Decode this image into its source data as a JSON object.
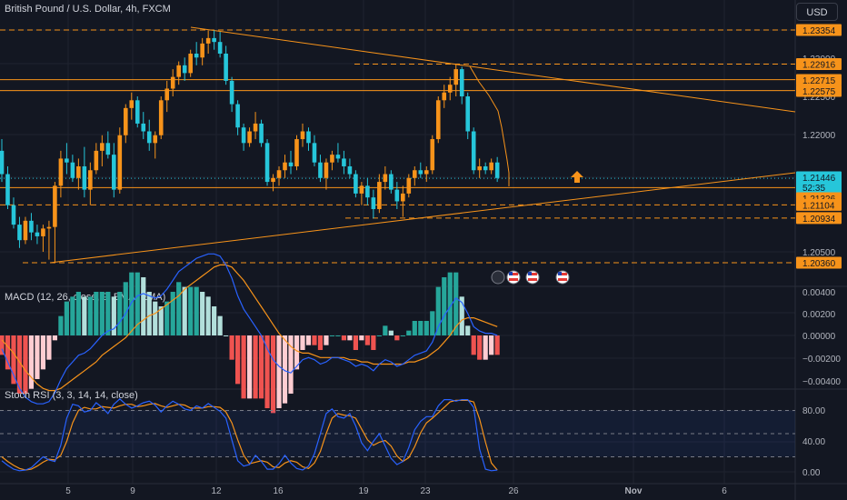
{
  "header": {
    "title": "British Pound / U.S. Dollar, 4h, FXCM",
    "currency_button": "USD"
  },
  "colors": {
    "bg": "#131722",
    "grid": "#1f2330",
    "up": "#f7931a",
    "down": "#26c6da",
    "level": "#f7931a",
    "macd_line": "#2962ff",
    "signal_line": "#f7931a",
    "hist_pos_strong": "#26a69a",
    "hist_pos_weak": "#b2dfdb",
    "hist_neg_strong": "#ef5350",
    "hist_neg_weak": "#ffcdd2",
    "stoch_k": "#2962ff",
    "stoch_d": "#f7931a",
    "axis_text": "#b2b5be"
  },
  "chart_data": [
    {
      "type": "candlestick",
      "title": "British Pound / U.S. Dollar, 4h, FXCM",
      "ylim": [
        1.201,
        1.236
      ],
      "y_ticks": [
        "1.20500",
        "1.22000",
        "1.22500",
        "1.23000"
      ],
      "x_ticks": [
        "5",
        "9",
        "12",
        "16",
        "19",
        "23",
        "26",
        "Nov",
        "6"
      ],
      "price_labels": [
        {
          "value": "1.23354",
          "style": "dashed"
        },
        {
          "value": "1.22916",
          "style": "dashed"
        },
        {
          "value": "1.22715",
          "style": "solid"
        },
        {
          "value": "1.22575",
          "style": "solid"
        },
        {
          "value": "1.21446",
          "style": "current"
        },
        {
          "value": "52:35",
          "style": "timer"
        },
        {
          "value": "1.21326",
          "style": "solid"
        },
        {
          "value": "1.21104",
          "style": "dashed"
        },
        {
          "value": "1.20934",
          "style": "dashed"
        },
        {
          "value": "1.20360",
          "style": "dashed"
        }
      ],
      "candles": [
        [
          1.218,
          1.2195,
          1.214,
          1.215
        ],
        [
          1.215,
          1.216,
          1.2105,
          1.211
        ],
        [
          1.211,
          1.212,
          1.208,
          1.2085
        ],
        [
          1.2085,
          1.2095,
          1.2055,
          1.2065
        ],
        [
          1.2065,
          1.2095,
          1.206,
          1.209
        ],
        [
          1.209,
          1.21,
          1.2065,
          1.2075
        ],
        [
          1.2075,
          1.2085,
          1.206,
          1.207
        ],
        [
          1.207,
          1.2085,
          1.205,
          1.208
        ],
        [
          1.208,
          1.209,
          1.204,
          1.2082
        ],
        [
          1.2082,
          1.214,
          1.2036,
          1.2135
        ],
        [
          1.2135,
          1.218,
          1.212,
          1.217
        ],
        [
          1.217,
          1.219,
          1.215,
          1.2165
        ],
        [
          1.2165,
          1.2175,
          1.214,
          1.2145
        ],
        [
          1.2145,
          1.217,
          1.213,
          1.216
        ],
        [
          1.216,
          1.2185,
          1.212,
          1.213
        ],
        [
          1.213,
          1.2165,
          1.211,
          1.2155
        ],
        [
          1.2155,
          1.219,
          1.215,
          1.218
        ],
        [
          1.218,
          1.22,
          1.216,
          1.219
        ],
        [
          1.219,
          1.2205,
          1.217,
          1.2175
        ],
        [
          1.2175,
          1.219,
          1.212,
          1.213
        ],
        [
          1.213,
          1.221,
          1.2125,
          1.22
        ],
        [
          1.22,
          1.224,
          1.219,
          1.2235
        ],
        [
          1.2235,
          1.2255,
          1.222,
          1.2245
        ],
        [
          1.2245,
          1.225,
          1.221,
          1.2215
        ],
        [
          1.2215,
          1.223,
          1.2195,
          1.2205
        ],
        [
          1.2205,
          1.222,
          1.218,
          1.219
        ],
        [
          1.219,
          1.2205,
          1.217,
          1.22
        ],
        [
          1.22,
          1.225,
          1.2195,
          1.2245
        ],
        [
          1.2245,
          1.227,
          1.223,
          1.226
        ],
        [
          1.226,
          1.2285,
          1.225,
          1.2275
        ],
        [
          1.2275,
          1.2295,
          1.2265,
          1.229
        ],
        [
          1.229,
          1.23,
          1.227,
          1.228
        ],
        [
          1.228,
          1.231,
          1.2275,
          1.2305
        ],
        [
          1.2305,
          1.232,
          1.229,
          1.23
        ],
        [
          1.23,
          1.2325,
          1.229,
          1.2318
        ],
        [
          1.2318,
          1.2335,
          1.2305,
          1.2325
        ],
        [
          1.2325,
          1.2335,
          1.231,
          1.232
        ],
        [
          1.232,
          1.2333,
          1.23,
          1.2305
        ],
        [
          1.2305,
          1.2315,
          1.2265,
          1.227
        ],
        [
          1.227,
          1.2275,
          1.223,
          1.224
        ],
        [
          1.224,
          1.2245,
          1.22,
          1.221
        ],
        [
          1.221,
          1.2215,
          1.218,
          1.219
        ],
        [
          1.219,
          1.221,
          1.2185,
          1.2205
        ],
        [
          1.2205,
          1.223,
          1.2195,
          1.2215
        ],
        [
          1.2215,
          1.222,
          1.2185,
          1.219
        ],
        [
          1.219,
          1.2195,
          1.2135,
          1.214
        ],
        [
          1.214,
          1.215,
          1.2128,
          1.2145
        ],
        [
          1.2145,
          1.216,
          1.2135,
          1.2155
        ],
        [
          1.2155,
          1.2175,
          1.2145,
          1.2165
        ],
        [
          1.2165,
          1.218,
          1.215,
          1.216
        ],
        [
          1.216,
          1.22,
          1.2155,
          1.2195
        ],
        [
          1.2195,
          1.2215,
          1.2185,
          1.2205
        ],
        [
          1.2205,
          1.221,
          1.218,
          1.219
        ],
        [
          1.219,
          1.22,
          1.216,
          1.2165
        ],
        [
          1.2165,
          1.2175,
          1.214,
          1.2145
        ],
        [
          1.2145,
          1.217,
          1.213,
          1.2165
        ],
        [
          1.2165,
          1.218,
          1.2155,
          1.2175
        ],
        [
          1.2175,
          1.219,
          1.2165,
          1.217
        ],
        [
          1.217,
          1.218,
          1.215,
          1.216
        ],
        [
          1.216,
          1.217,
          1.2145,
          1.215
        ],
        [
          1.215,
          1.2155,
          1.212,
          1.2125
        ],
        [
          1.2125,
          1.214,
          1.211,
          1.2135
        ],
        [
          1.2135,
          1.2145,
          1.211,
          1.212
        ],
        [
          1.212,
          1.213,
          1.2093,
          1.2105
        ],
        [
          1.2105,
          1.215,
          1.21,
          1.214
        ],
        [
          1.214,
          1.216,
          1.213,
          1.215
        ],
        [
          1.215,
          1.2155,
          1.2125,
          1.213
        ],
        [
          1.213,
          1.214,
          1.2105,
          1.2115
        ],
        [
          1.2115,
          1.2135,
          1.2095,
          1.2125
        ],
        [
          1.2125,
          1.215,
          1.212,
          1.2145
        ],
        [
          1.2145,
          1.216,
          1.2135,
          1.2155
        ],
        [
          1.2155,
          1.2165,
          1.2145,
          1.215
        ],
        [
          1.215,
          1.216,
          1.214,
          1.2155
        ],
        [
          1.2155,
          1.22,
          1.215,
          1.2195
        ],
        [
          1.2195,
          1.225,
          1.219,
          1.2245
        ],
        [
          1.2245,
          1.2265,
          1.2235,
          1.2255
        ],
        [
          1.2255,
          1.2275,
          1.2245,
          1.2265
        ],
        [
          1.2265,
          1.2292,
          1.225,
          1.2285
        ],
        [
          1.2285,
          1.2288,
          1.224,
          1.225
        ],
        [
          1.225,
          1.2255,
          1.2195,
          1.2205
        ],
        [
          1.2205,
          1.221,
          1.215,
          1.2155
        ],
        [
          1.2155,
          1.217,
          1.2145,
          1.216
        ],
        [
          1.216,
          1.2165,
          1.215,
          1.2155
        ],
        [
          1.2155,
          1.217,
          1.215,
          1.2165
        ],
        [
          1.2165,
          1.2172,
          1.214,
          1.2145
        ]
      ]
    },
    {
      "type": "line",
      "title": "MACD (12, 26, close, 9, EMA, EMA)",
      "ylim": [
        -0.0045,
        0.0045
      ],
      "y_ticks": [
        "0.00400",
        "0.00200",
        "0.00000",
        "−0.00200",
        "−0.00400"
      ],
      "series": [
        {
          "values": [
            -0.0006,
            -0.0012,
            -0.0018,
            -0.0024,
            -0.0028,
            -0.003,
            -0.0031,
            -0.0031,
            -0.003,
            -0.0026,
            -0.002,
            -0.0015,
            -0.0012,
            -0.0009,
            -0.0008,
            -0.0006,
            -0.0003,
            0.0,
            0.0002,
            0.0003,
            0.0006,
            0.001,
            0.0015,
            0.0018,
            0.0019,
            0.0018,
            0.0017,
            0.0018,
            0.0021,
            0.0025,
            0.0029,
            0.0031,
            0.0033,
            0.0035,
            0.0036,
            0.0037,
            0.0037,
            0.0036,
            0.0032,
            0.0026,
            0.0018,
            0.0012,
            0.0008,
            0.0004,
            0.0,
            -0.0006,
            -0.0011,
            -0.0014,
            -0.0016,
            -0.0017,
            -0.0014,
            -0.0011,
            -0.001,
            -0.0011,
            -0.0013,
            -0.0012,
            -0.001,
            -0.001,
            -0.0011,
            -0.0012,
            -0.0014,
            -0.0013,
            -0.0014,
            -0.0016,
            -0.0013,
            -0.0011,
            -0.0012,
            -0.0014,
            -0.0013,
            -0.0011,
            -0.0009,
            -0.0008,
            -0.0007,
            -0.0003,
            0.0004,
            0.0009,
            0.0013,
            0.0017,
            0.0015,
            0.001,
            0.0004,
            0.0002,
            0.0001,
            0.0001,
            0.0
          ]
        },
        {
          "values": [
            -0.0002,
            -0.0005,
            -0.0008,
            -0.0012,
            -0.0016,
            -0.0019,
            -0.0022,
            -0.0024,
            -0.0025,
            -0.0025,
            -0.0024,
            -0.0022,
            -0.002,
            -0.0018,
            -0.0016,
            -0.0014,
            -0.0012,
            -0.0009,
            -0.0007,
            -0.0005,
            -0.0003,
            -0.0001,
            0.0002,
            0.0005,
            0.0007,
            0.0009,
            0.001,
            0.0012,
            0.0014,
            0.0016,
            0.0018,
            0.0021,
            0.0023,
            0.0025,
            0.0027,
            0.0029,
            0.0031,
            0.0032,
            0.0032,
            0.0031,
            0.0028,
            0.0025,
            0.0021,
            0.0017,
            0.0013,
            0.0009,
            0.0005,
            0.0001,
            -0.0002,
            -0.0005,
            -0.0007,
            -0.0008,
            -0.0008,
            -0.0009,
            -0.001,
            -0.001,
            -0.001,
            -0.001,
            -0.001,
            -0.0011,
            -0.0011,
            -0.0012,
            -0.0012,
            -0.0013,
            -0.0013,
            -0.0013,
            -0.0013,
            -0.0013,
            -0.0013,
            -0.0012,
            -0.0012,
            -0.0011,
            -0.001,
            -0.0008,
            -0.0006,
            -0.0003,
            0.0,
            0.0004,
            0.0007,
            0.0008,
            0.0008,
            0.0007,
            0.0006,
            0.0005,
            0.0004
          ]
        }
      ]
    },
    {
      "type": "line",
      "title": "Stoch RSI (3, 3, 14, 14, close)",
      "ylim": [
        -8,
        108
      ],
      "y_ticks": [
        "80.00",
        "40.00",
        "0.00"
      ],
      "band": [
        20,
        80
      ],
      "series": [
        {
          "values": [
            15,
            9,
            4,
            2,
            3,
            6,
            13,
            20,
            16,
            14,
            35,
            70,
            88,
            86,
            78,
            80,
            90,
            84,
            76,
            88,
            95,
            88,
            83,
            86,
            90,
            92,
            87,
            78,
            86,
            92,
            88,
            82,
            80,
            86,
            83,
            89,
            84,
            79,
            70,
            42,
            15,
            8,
            10,
            22,
            14,
            4,
            4,
            11,
            22,
            12,
            5,
            3,
            8,
            24,
            50,
            76,
            82,
            72,
            70,
            76,
            60,
            38,
            28,
            40,
            50,
            34,
            18,
            10,
            14,
            32,
            55,
            66,
            72,
            72,
            86,
            94,
            94,
            92,
            94,
            94,
            84,
            30,
            4,
            2,
            3
          ]
        },
        {
          "values": [
            20,
            14,
            9,
            5,
            3,
            4,
            8,
            13,
            17,
            16,
            22,
            40,
            64,
            80,
            84,
            82,
            82,
            85,
            84,
            83,
            86,
            88,
            88,
            85,
            86,
            88,
            89,
            86,
            84,
            86,
            88,
            87,
            83,
            83,
            83,
            85,
            85,
            84,
            78,
            64,
            42,
            22,
            11,
            13,
            15,
            13,
            7,
            6,
            12,
            15,
            13,
            7,
            5,
            12,
            27,
            50,
            70,
            76,
            74,
            73,
            70,
            56,
            42,
            35,
            39,
            41,
            34,
            21,
            14,
            19,
            33,
            51,
            64,
            70,
            77,
            84,
            91,
            93,
            93,
            93,
            91,
            69,
            39,
            12,
            3
          ]
        }
      ]
    }
  ]
}
